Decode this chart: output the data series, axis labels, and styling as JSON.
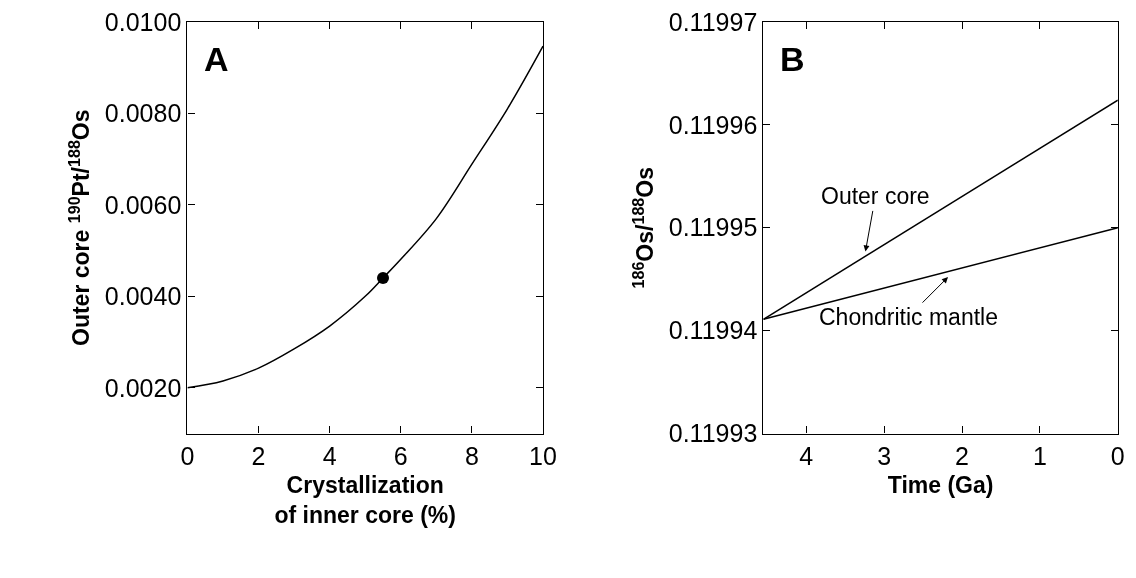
{
  "chart_data": [
    {
      "type": "line",
      "title": "A",
      "xlabel": "Crystallization\nof inner core (%)",
      "ylabel": "Outer core $^{190}$Pt/$^{188}$Os",
      "x": [
        0,
        1,
        2,
        3,
        4,
        5,
        5.5,
        6,
        7,
        8,
        9,
        10
      ],
      "series": [
        {
          "color": "#000000",
          "values": [
            0.002,
            0.00215,
            0.00243,
            0.00285,
            0.00335,
            0.004,
            0.0044,
            0.00481,
            0.0057,
            0.00689,
            0.0081,
            0.00947
          ]
        },
        {
          "type": "scatter",
          "color": "#000000",
          "marker": "circle",
          "x": [
            5.5
          ],
          "values": [
            0.0044
          ]
        }
      ],
      "xlim": [
        0,
        10
      ],
      "xticks": [
        0,
        2,
        4,
        6,
        8,
        10
      ],
      "ylim": [
        0.001,
        0.01
      ],
      "yticks": [
        {
          "value": 0.002,
          "label": "0.0020"
        },
        {
          "value": 0.004,
          "label": "0.0040"
        },
        {
          "value": 0.006,
          "label": "0.0060"
        },
        {
          "value": 0.008,
          "label": "0.0080"
        },
        {
          "value": 0.01,
          "label": "0.0100"
        }
      ],
      "marker": "none"
    },
    {
      "type": "line",
      "title": "B",
      "xlabel": "Time (Ga)",
      "ylabel": "$^{186}$Os/$^{188}$Os",
      "x": [
        4.55,
        0
      ],
      "series": [
        {
          "color": "#000000",
          "values": [
            0.1199411,
            0.1199624
          ]
        },
        {
          "color": "#000000",
          "values": [
            0.1199411,
            0.11995
          ]
        }
      ],
      "xlim": [
        4.55,
        0
      ],
      "xticks": [
        4,
        3,
        2,
        1,
        0
      ],
      "ylim": [
        0.11993,
        0.11997
      ],
      "yticks": [
        0.11993,
        0.11994,
        0.11995,
        0.11996,
        0.11997
      ],
      "annotations": [
        {
          "text": "Outer core",
          "x": 3.24,
          "y": 0.1199477
        },
        {
          "text": "Chondritic mantle",
          "x": 2.18,
          "y": 0.1199452
        }
      ],
      "marker": "none"
    }
  ]
}
